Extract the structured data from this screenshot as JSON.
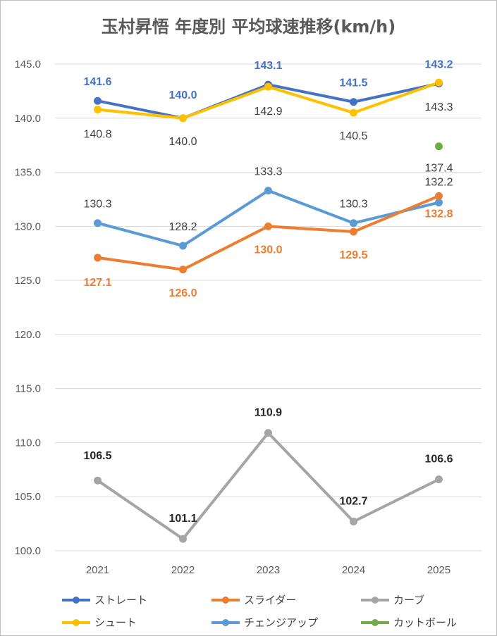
{
  "chart_data": {
    "type": "line",
    "title": "玉村昇悟 年度別 平均球速推移(km/h)",
    "categories": [
      "2021",
      "2022",
      "2023",
      "2024",
      "2025"
    ],
    "ylim": [
      100.0,
      145.0
    ],
    "y_ticks": [
      "100.0",
      "105.0",
      "110.0",
      "115.0",
      "120.0",
      "125.0",
      "130.0",
      "135.0",
      "140.0",
      "145.0"
    ],
    "grid": true,
    "legend_position": "bottom",
    "series": [
      {
        "name": "ストレート",
        "color": "#4472C4",
        "values": [
          141.6,
          140.0,
          143.1,
          141.5,
          143.2
        ],
        "labels": [
          "141.6",
          "140.0",
          "143.1",
          "141.5",
          "143.2"
        ],
        "label_color": "#4472C4"
      },
      {
        "name": "スライダー",
        "color": "#ED7D31",
        "values": [
          127.1,
          126.0,
          130.0,
          129.5,
          132.8
        ],
        "labels": [
          "127.1",
          "126.0",
          "130.0",
          "129.5",
          "132.8"
        ],
        "label_color": "#ED7D31"
      },
      {
        "name": "カーブ",
        "color": "#A5A5A5",
        "values": [
          106.5,
          101.1,
          110.9,
          102.7,
          106.6
        ],
        "labels": [
          "106.5",
          "101.1",
          "110.9",
          "102.7",
          "106.6"
        ],
        "label_color": "#262626"
      },
      {
        "name": "シュート",
        "color": "#FFC000",
        "values": [
          140.8,
          140.0,
          142.9,
          140.5,
          143.3
        ],
        "labels": [
          "140.8",
          "140.0",
          "142.9",
          "140.5",
          "143.3"
        ],
        "label_color": "#404040"
      },
      {
        "name": "チェンジアップ",
        "color": "#5B9BD5",
        "values": [
          130.3,
          128.2,
          133.3,
          130.3,
          132.2
        ],
        "labels": [
          "130.3",
          "128.2",
          "133.3",
          "130.3",
          "132.2"
        ],
        "label_color": "#404040"
      },
      {
        "name": "カットボール",
        "color": "#70AD47",
        "values": [
          null,
          null,
          null,
          null,
          137.4
        ],
        "labels": [
          null,
          null,
          null,
          null,
          "137.4"
        ],
        "label_color": "#404040"
      }
    ]
  }
}
